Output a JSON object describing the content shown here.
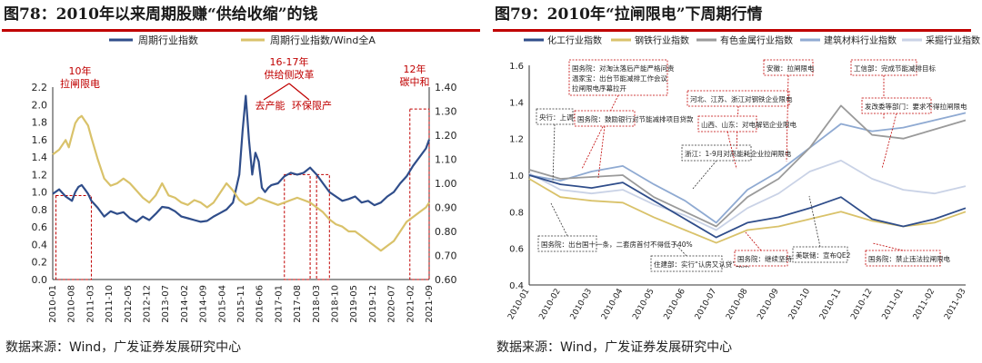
{
  "panel1": {
    "title": "图78：2010年以来周期股赚“供给收缩”的钱",
    "source": "数据来源：Wind，广发证券发展研究中心",
    "chart_data": {
      "type": "line",
      "legend": [
        "周期行业指数",
        "周期行业指数/Wind全A"
      ],
      "y_left": {
        "min": 0,
        "max": 2.2,
        "ticks": [
          "0.0",
          "0.2",
          "0.4",
          "0.6",
          "0.8",
          "1.0",
          "1.2",
          "1.4",
          "1.6",
          "1.8",
          "2.0",
          "2.2"
        ]
      },
      "y_right": {
        "min": 0.6,
        "max": 1.4,
        "ticks": [
          "0.60",
          "0.70",
          "0.80",
          "0.90",
          "1.00",
          "1.10",
          "1.20",
          "1.30",
          "1.40"
        ]
      },
      "x_ticks": [
        "2010-01",
        "2010-08",
        "2011-03",
        "2011-10",
        "2012-05",
        "2012-12",
        "2013-07",
        "2014-02",
        "2014-09",
        "2015-04",
        "2015-11",
        "2016-06",
        "2017-01",
        "2017-08",
        "2018-03",
        "2018-10",
        "2019-05",
        "2019-12",
        "2020-07",
        "2021-02",
        "2021-09"
      ],
      "series": [
        {
          "name": "周期行业指数",
          "color": "#2f4d8a",
          "axis": "left",
          "points": [
            [
              0,
              0.98
            ],
            [
              2,
              1.03
            ],
            [
              4,
              0.95
            ],
            [
              6,
              0.9
            ],
            [
              7,
              1.0
            ],
            [
              8,
              1.06
            ],
            [
              9,
              1.08
            ],
            [
              10,
              1.03
            ],
            [
              11,
              0.98
            ],
            [
              12,
              0.9
            ],
            [
              14,
              0.82
            ],
            [
              16,
              0.72
            ],
            [
              18,
              0.78
            ],
            [
              20,
              0.75
            ],
            [
              22,
              0.77
            ],
            [
              24,
              0.7
            ],
            [
              26,
              0.66
            ],
            [
              28,
              0.72
            ],
            [
              30,
              0.68
            ],
            [
              32,
              0.75
            ],
            [
              34,
              0.83
            ],
            [
              36,
              0.82
            ],
            [
              38,
              0.78
            ],
            [
              40,
              0.72
            ],
            [
              42,
              0.7
            ],
            [
              44,
              0.68
            ],
            [
              46,
              0.66
            ],
            [
              48,
              0.67
            ],
            [
              50,
              0.72
            ],
            [
              52,
              0.76
            ],
            [
              54,
              0.8
            ],
            [
              56,
              0.88
            ],
            [
              58,
              1.2
            ],
            [
              59,
              1.7
            ],
            [
              60,
              2.1
            ],
            [
              61,
              1.6
            ],
            [
              62,
              1.2
            ],
            [
              63,
              1.45
            ],
            [
              64,
              1.35
            ],
            [
              65,
              1.05
            ],
            [
              66,
              1.0
            ],
            [
              67,
              1.05
            ],
            [
              68,
              1.08
            ],
            [
              70,
              1.1
            ],
            [
              72,
              1.18
            ],
            [
              74,
              1.22
            ],
            [
              76,
              1.2
            ],
            [
              78,
              1.22
            ],
            [
              80,
              1.28
            ],
            [
              82,
              1.2
            ],
            [
              84,
              1.1
            ],
            [
              86,
              1.0
            ],
            [
              88,
              0.95
            ],
            [
              90,
              0.9
            ],
            [
              92,
              0.92
            ],
            [
              94,
              0.95
            ],
            [
              96,
              0.88
            ],
            [
              98,
              0.9
            ],
            [
              100,
              0.85
            ],
            [
              102,
              0.88
            ],
            [
              104,
              0.95
            ],
            [
              106,
              1.0
            ],
            [
              108,
              1.1
            ],
            [
              110,
              1.18
            ],
            [
              112,
              1.3
            ],
            [
              114,
              1.4
            ],
            [
              116,
              1.5
            ],
            [
              117,
              1.6
            ]
          ]
        },
        {
          "name": "周期行业指数/Wind全A",
          "color": "#d9c26a",
          "axis": "right",
          "points": [
            [
              0,
              1.12
            ],
            [
              2,
              1.14
            ],
            [
              4,
              1.18
            ],
            [
              5,
              1.15
            ],
            [
              6,
              1.2
            ],
            [
              7,
              1.25
            ],
            [
              8,
              1.27
            ],
            [
              9,
              1.28
            ],
            [
              10,
              1.26
            ],
            [
              11,
              1.24
            ],
            [
              12,
              1.19
            ],
            [
              14,
              1.1
            ],
            [
              16,
              1.02
            ],
            [
              18,
              0.99
            ],
            [
              20,
              1.0
            ],
            [
              22,
              1.02
            ],
            [
              24,
              1.0
            ],
            [
              26,
              0.97
            ],
            [
              28,
              0.94
            ],
            [
              30,
              0.92
            ],
            [
              32,
              0.95
            ],
            [
              34,
              1.0
            ],
            [
              36,
              0.95
            ],
            [
              38,
              0.94
            ],
            [
              40,
              0.92
            ],
            [
              42,
              0.91
            ],
            [
              44,
              0.93
            ],
            [
              46,
              0.92
            ],
            [
              48,
              0.9
            ],
            [
              50,
              0.92
            ],
            [
              52,
              0.96
            ],
            [
              54,
              1.0
            ],
            [
              56,
              0.97
            ],
            [
              58,
              0.93
            ],
            [
              60,
              0.91
            ],
            [
              62,
              0.92
            ],
            [
              64,
              0.94
            ],
            [
              66,
              0.93
            ],
            [
              68,
              0.92
            ],
            [
              70,
              0.91
            ],
            [
              72,
              0.92
            ],
            [
              74,
              0.93
            ],
            [
              76,
              0.94
            ],
            [
              78,
              0.93
            ],
            [
              80,
              0.92
            ],
            [
              82,
              0.9
            ],
            [
              84,
              0.88
            ],
            [
              86,
              0.85
            ],
            [
              88,
              0.83
            ],
            [
              90,
              0.82
            ],
            [
              92,
              0.8
            ],
            [
              94,
              0.8
            ],
            [
              96,
              0.78
            ],
            [
              98,
              0.76
            ],
            [
              100,
              0.74
            ],
            [
              102,
              0.72
            ],
            [
              104,
              0.74
            ],
            [
              106,
              0.76
            ],
            [
              108,
              0.8
            ],
            [
              110,
              0.84
            ],
            [
              112,
              0.86
            ],
            [
              114,
              0.88
            ],
            [
              116,
              0.9
            ],
            [
              117,
              0.92
            ]
          ]
        }
      ],
      "annotations": [
        {
          "text": "10年",
          "text2": "拉闸限电",
          "box": [
            1,
            12
          ]
        },
        {
          "text": "16-17年",
          "text2": "供给侧改革"
        },
        {
          "text": "去产能",
          "box": [
            72,
            80
          ]
        },
        {
          "text": "环保限产",
          "box": [
            82,
            86
          ]
        },
        {
          "text": "12年",
          "text2": "碳中和",
          "box": [
            111,
            117
          ]
        }
      ]
    }
  },
  "panel2": {
    "title": "图79：2010年“拉闸限电”下周期行情",
    "source": "数据来源：Wind，广发证券发展研究中心",
    "chart_data": {
      "type": "line",
      "legend": [
        "化工行业指数",
        "钢铁行业指数",
        "有色金属行业指数",
        "建筑材料行业指数",
        "采掘行业指数"
      ],
      "y": {
        "min": 0.4,
        "max": 1.6,
        "ticks": [
          "0.4",
          "0.6",
          "0.8",
          "1.0",
          "1.2",
          "1.4",
          "1.6"
        ]
      },
      "x_ticks": [
        "2010-01",
        "2010-02",
        "2010-03",
        "2010-04",
        "2010-05",
        "2010-06",
        "2010-07",
        "2010-08",
        "2010-09",
        "2010-10",
        "2010-11",
        "2010-12",
        "2011-01",
        "2011-02",
        "2011-03"
      ],
      "series": [
        {
          "name": "化工行业指数",
          "color": "#2f4d8a",
          "points": [
            [
              0,
              1.0
            ],
            [
              1,
              0.95
            ],
            [
              2,
              0.93
            ],
            [
              3,
              0.96
            ],
            [
              4,
              0.86
            ],
            [
              5,
              0.76
            ],
            [
              6,
              0.66
            ],
            [
              7,
              0.74
            ],
            [
              8,
              0.77
            ],
            [
              9,
              0.82
            ],
            [
              10,
              0.88
            ],
            [
              11,
              0.76
            ],
            [
              12,
              0.72
            ],
            [
              13,
              0.76
            ],
            [
              14,
              0.82
            ]
          ]
        },
        {
          "name": "钢铁行业指数",
          "color": "#d9c26a",
          "points": [
            [
              0,
              0.98
            ],
            [
              1,
              0.88
            ],
            [
              2,
              0.86
            ],
            [
              3,
              0.85
            ],
            [
              4,
              0.77
            ],
            [
              5,
              0.7
            ],
            [
              6,
              0.63
            ],
            [
              7,
              0.7
            ],
            [
              8,
              0.72
            ],
            [
              9,
              0.76
            ],
            [
              10,
              0.8
            ],
            [
              11,
              0.75
            ],
            [
              12,
              0.72
            ],
            [
              13,
              0.74
            ],
            [
              14,
              0.8
            ]
          ]
        },
        {
          "name": "有色金属行业指数",
          "color": "#9a9a9a",
          "points": [
            [
              0,
              1.03
            ],
            [
              1,
              0.98
            ],
            [
              2,
              0.99
            ],
            [
              3,
              1.0
            ],
            [
              4,
              0.88
            ],
            [
              5,
              0.8
            ],
            [
              6,
              0.72
            ],
            [
              7,
              0.88
            ],
            [
              8,
              0.98
            ],
            [
              9,
              1.15
            ],
            [
              10,
              1.38
            ],
            [
              11,
              1.22
            ],
            [
              12,
              1.2
            ],
            [
              13,
              1.25
            ],
            [
              14,
              1.3
            ]
          ]
        },
        {
          "name": "建筑材料行业指数",
          "color": "#8faad2",
          "points": [
            [
              0,
              1.0
            ],
            [
              1,
              0.97
            ],
            [
              2,
              1.02
            ],
            [
              3,
              1.05
            ],
            [
              4,
              0.95
            ],
            [
              5,
              0.86
            ],
            [
              6,
              0.74
            ],
            [
              7,
              0.92
            ],
            [
              8,
              1.02
            ],
            [
              9,
              1.15
            ],
            [
              10,
              1.28
            ],
            [
              11,
              1.24
            ],
            [
              12,
              1.26
            ],
            [
              13,
              1.3
            ],
            [
              14,
              1.34
            ]
          ]
        },
        {
          "name": "采掘行业指数",
          "color": "#c9d2e6",
          "points": [
            [
              0,
              1.01
            ],
            [
              1,
              0.92
            ],
            [
              2,
              0.9
            ],
            [
              3,
              0.92
            ],
            [
              4,
              0.84
            ],
            [
              5,
              0.78
            ],
            [
              6,
              0.7
            ],
            [
              7,
              0.82
            ],
            [
              8,
              0.9
            ],
            [
              9,
              1.02
            ],
            [
              10,
              1.08
            ],
            [
              11,
              0.98
            ],
            [
              12,
              0.92
            ],
            [
              13,
              0.9
            ],
            [
              14,
              0.94
            ]
          ]
        }
      ],
      "annotations": [
        {
          "text": "国务院：对淘汰落后产能严格问责",
          "text2": "温家宝：出台节能减排工作会议",
          "text3": "拉闸限电序幕拉开"
        },
        {
          "text": "央行：上调存款准备金率"
        },
        {
          "text": "国务院：鼓励银行对节能减排项目贷款"
        },
        {
          "text": "浙江：1-9月对高能耗企业拉闸限电"
        },
        {
          "text": "国务院：出台国十一条，二套房首付不得低于40%"
        },
        {
          "text": "住建部：实行“认房又认贷”政策"
        },
        {
          "text": "国务院：继续坚持节能减排专项督查"
        },
        {
          "text": "发改委：二季度GDP增长不低于8%"
        },
        {
          "text": "河北、江苏、浙江对钢铁企业限电"
        },
        {
          "text": "山西、山东：对电解铝企业限电"
        },
        {
          "text": "安徽：拉闸限电"
        },
        {
          "text": "工信部：完成节能减排目标"
        },
        {
          "text": "发改委等部门：要求不得拉闸限电"
        },
        {
          "text": "美联储：宣布QE2"
        },
        {
          "text": "国务院：禁止违法拉闸限电"
        }
      ]
    }
  }
}
